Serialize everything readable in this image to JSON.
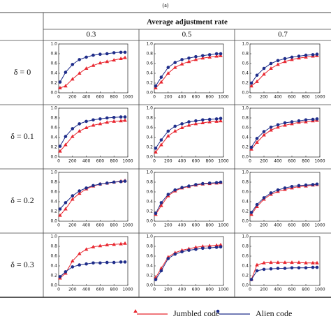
{
  "figure_label": "(a)",
  "column_header": "Average adjustment rate",
  "columns": [
    "0.3",
    "0.5",
    "0.7"
  ],
  "rows": [
    "δ = 0",
    "δ = 0.1",
    "δ = 0.2",
    "δ = 0.3"
  ],
  "chart_data": [
    {
      "type": "line",
      "x": [
        20,
        100,
        200,
        300,
        400,
        500,
        600,
        700,
        800,
        900,
        960
      ],
      "xlim": [
        0,
        1000
      ],
      "xticks": [
        0,
        200,
        400,
        600,
        800,
        1000
      ],
      "ylim": [
        0,
        1
      ],
      "yticks": [
        {
          "value": 0,
          "label": "0.0"
        },
        0.2,
        0.4,
        0.6,
        0.8,
        {
          "value": 1,
          "label": "1.0"
        }
      ],
      "series": [
        {
          "name": "Jumbled code",
          "color": "#e8262f",
          "marker": "triangle",
          "values": [
            0.1,
            0.14,
            0.28,
            0.4,
            0.5,
            0.56,
            0.61,
            0.64,
            0.67,
            0.7,
            0.72
          ]
        },
        {
          "name": "Alien code",
          "color": "#1f2d8a",
          "marker": "circle",
          "values": [
            0.22,
            0.42,
            0.58,
            0.68,
            0.73,
            0.77,
            0.79,
            0.8,
            0.82,
            0.83,
            0.83
          ]
        }
      ]
    },
    {
      "type": "line",
      "x": [
        20,
        100,
        200,
        300,
        400,
        500,
        600,
        700,
        800,
        900,
        960
      ],
      "xlim": [
        0,
        1000
      ],
      "xticks": [
        0,
        200,
        400,
        600,
        800,
        1000
      ],
      "ylim": [
        0,
        1
      ],
      "yticks": [
        {
          "value": 0,
          "label": "0.0"
        },
        0.2,
        0.4,
        0.6,
        0.8,
        {
          "value": 1,
          "label": "1.0"
        }
      ],
      "series": [
        {
          "name": "Jumbled code",
          "color": "#e8262f",
          "marker": "triangle",
          "values": [
            0.1,
            0.22,
            0.4,
            0.52,
            0.59,
            0.64,
            0.68,
            0.71,
            0.73,
            0.75,
            0.76
          ]
        },
        {
          "name": "Alien code",
          "color": "#1f2d8a",
          "marker": "circle",
          "values": [
            0.14,
            0.32,
            0.52,
            0.62,
            0.68,
            0.71,
            0.74,
            0.76,
            0.78,
            0.8,
            0.8
          ]
        }
      ]
    },
    {
      "type": "line",
      "x": [
        20,
        100,
        200,
        300,
        400,
        500,
        600,
        700,
        800,
        900,
        960
      ],
      "xlim": [
        0,
        1000
      ],
      "xticks": [
        0,
        200,
        400,
        600,
        800,
        1000
      ],
      "ylim": [
        0,
        1
      ],
      "yticks": [
        {
          "value": 0,
          "label": "0.0"
        },
        0.2,
        0.4,
        0.6,
        0.8,
        {
          "value": 1,
          "label": "1.0"
        }
      ],
      "series": [
        {
          "name": "Jumbled code",
          "color": "#e8262f",
          "marker": "triangle",
          "values": [
            0.14,
            0.23,
            0.38,
            0.5,
            0.58,
            0.64,
            0.68,
            0.71,
            0.73,
            0.75,
            0.76
          ]
        },
        {
          "name": "Alien code",
          "color": "#1f2d8a",
          "marker": "circle",
          "values": [
            0.2,
            0.36,
            0.5,
            0.6,
            0.66,
            0.7,
            0.73,
            0.75,
            0.77,
            0.78,
            0.79
          ]
        }
      ]
    },
    {
      "type": "line",
      "x": [
        20,
        100,
        200,
        300,
        400,
        500,
        600,
        700,
        800,
        900,
        960
      ],
      "xlim": [
        0,
        1000
      ],
      "xticks": [
        0,
        200,
        400,
        600,
        800,
        1000
      ],
      "ylim": [
        0,
        1
      ],
      "yticks": [
        {
          "value": 0,
          "label": "0.0"
        },
        0.2,
        0.4,
        0.6,
        0.8,
        {
          "value": 1,
          "label": "1.0"
        }
      ],
      "series": [
        {
          "name": "Jumbled code",
          "color": "#e8262f",
          "marker": "triangle",
          "values": [
            0.12,
            0.25,
            0.42,
            0.53,
            0.6,
            0.65,
            0.68,
            0.71,
            0.73,
            0.74,
            0.75
          ]
        },
        {
          "name": "Alien code",
          "color": "#1f2d8a",
          "marker": "circle",
          "values": [
            0.22,
            0.42,
            0.58,
            0.68,
            0.73,
            0.76,
            0.78,
            0.8,
            0.81,
            0.82,
            0.82
          ]
        }
      ]
    },
    {
      "type": "line",
      "x": [
        20,
        100,
        200,
        300,
        400,
        500,
        600,
        700,
        800,
        900,
        960
      ],
      "xlim": [
        0,
        1000
      ],
      "xticks": [
        0,
        200,
        400,
        600,
        800,
        1000
      ],
      "ylim": [
        0,
        1
      ],
      "yticks": [
        {
          "value": 0,
          "label": "0.0"
        },
        0.2,
        0.4,
        0.6,
        0.8,
        {
          "value": 1,
          "label": "1.0"
        }
      ],
      "series": [
        {
          "name": "Jumbled code",
          "color": "#e8262f",
          "marker": "triangle",
          "values": [
            0.1,
            0.25,
            0.43,
            0.53,
            0.6,
            0.65,
            0.68,
            0.7,
            0.72,
            0.73,
            0.74
          ]
        },
        {
          "name": "Alien code",
          "color": "#1f2d8a",
          "marker": "circle",
          "values": [
            0.18,
            0.35,
            0.53,
            0.63,
            0.68,
            0.72,
            0.74,
            0.76,
            0.77,
            0.78,
            0.79
          ]
        }
      ]
    },
    {
      "type": "line",
      "x": [
        20,
        100,
        200,
        300,
        400,
        500,
        600,
        700,
        800,
        900,
        960
      ],
      "xlim": [
        0,
        1000
      ],
      "xticks": [
        0,
        200,
        400,
        600,
        800,
        1000
      ],
      "ylim": [
        0,
        1
      ],
      "yticks": [
        {
          "value": 0,
          "label": "0.0"
        },
        0.2,
        0.4,
        0.6,
        0.8,
        {
          "value": 1,
          "label": "1.0"
        }
      ],
      "series": [
        {
          "name": "Jumbled code",
          "color": "#e8262f",
          "marker": "triangle",
          "values": [
            0.16,
            0.3,
            0.45,
            0.55,
            0.61,
            0.65,
            0.68,
            0.71,
            0.72,
            0.74,
            0.75
          ]
        },
        {
          "name": "Alien code",
          "color": "#1f2d8a",
          "marker": "circle",
          "values": [
            0.2,
            0.38,
            0.52,
            0.61,
            0.66,
            0.7,
            0.72,
            0.74,
            0.76,
            0.77,
            0.78
          ]
        }
      ]
    },
    {
      "type": "line",
      "x": [
        20,
        100,
        200,
        300,
        400,
        500,
        600,
        700,
        800,
        900,
        960
      ],
      "xlim": [
        0,
        1000
      ],
      "xticks": [
        0,
        200,
        400,
        600,
        800,
        1000
      ],
      "ylim": [
        0,
        1
      ],
      "yticks": [
        {
          "value": 0,
          "label": "0.0"
        },
        0.2,
        0.4,
        0.6,
        0.8,
        {
          "value": 1,
          "label": "1.0"
        }
      ],
      "series": [
        {
          "name": "Jumbled code",
          "color": "#e8262f",
          "marker": "triangle",
          "values": [
            0.12,
            0.25,
            0.45,
            0.57,
            0.66,
            0.72,
            0.76,
            0.78,
            0.8,
            0.82,
            0.83
          ]
        },
        {
          "name": "Alien code",
          "color": "#1f2d8a",
          "marker": "circle",
          "values": [
            0.25,
            0.38,
            0.52,
            0.62,
            0.68,
            0.73,
            0.76,
            0.78,
            0.8,
            0.81,
            0.82
          ]
        }
      ]
    },
    {
      "type": "line",
      "x": [
        20,
        100,
        200,
        300,
        400,
        500,
        600,
        700,
        800,
        900,
        960
      ],
      "xlim": [
        0,
        1000
      ],
      "xticks": [
        0,
        200,
        400,
        600,
        800,
        1000
      ],
      "ylim": [
        0,
        1
      ],
      "yticks": [
        {
          "value": 0,
          "label": "0.0"
        },
        0.2,
        0.4,
        0.6,
        0.8,
        {
          "value": 1,
          "label": "1.0"
        }
      ],
      "series": [
        {
          "name": "Jumbled code",
          "color": "#e8262f",
          "marker": "triangle",
          "values": [
            0.14,
            0.32,
            0.52,
            0.62,
            0.68,
            0.71,
            0.74,
            0.76,
            0.77,
            0.78,
            0.79
          ]
        },
        {
          "name": "Alien code",
          "color": "#1f2d8a",
          "marker": "circle",
          "values": [
            0.16,
            0.38,
            0.55,
            0.64,
            0.69,
            0.72,
            0.75,
            0.77,
            0.78,
            0.79,
            0.8
          ]
        }
      ]
    },
    {
      "type": "line",
      "x": [
        20,
        100,
        200,
        300,
        400,
        500,
        600,
        700,
        800,
        900,
        960
      ],
      "xlim": [
        0,
        1000
      ],
      "xticks": [
        0,
        200,
        400,
        600,
        800,
        1000
      ],
      "ylim": [
        0,
        1
      ],
      "yticks": [
        {
          "value": 0,
          "label": "0.0"
        },
        0.2,
        0.4,
        0.6,
        0.8,
        {
          "value": 1,
          "label": "1.0"
        }
      ],
      "series": [
        {
          "name": "Jumbled code",
          "color": "#e8262f",
          "marker": "triangle",
          "values": [
            0.14,
            0.3,
            0.45,
            0.55,
            0.61,
            0.65,
            0.68,
            0.71,
            0.72,
            0.74,
            0.75
          ]
        },
        {
          "name": "Alien code",
          "color": "#1f2d8a",
          "marker": "circle",
          "values": [
            0.18,
            0.34,
            0.48,
            0.58,
            0.64,
            0.68,
            0.71,
            0.73,
            0.74,
            0.75,
            0.76
          ]
        }
      ]
    },
    {
      "type": "line",
      "x": [
        20,
        100,
        200,
        300,
        400,
        500,
        600,
        700,
        800,
        900,
        960
      ],
      "xlim": [
        0,
        1000
      ],
      "xticks": [
        0,
        200,
        400,
        600,
        800,
        1000
      ],
      "ylim": [
        0,
        1
      ],
      "yticks": [
        {
          "value": 0,
          "label": "0.0"
        },
        0.2,
        0.4,
        0.6,
        0.8,
        {
          "value": 1,
          "label": "1.0"
        }
      ],
      "series": [
        {
          "name": "Jumbled code",
          "color": "#e8262f",
          "marker": "triangle",
          "values": [
            0.15,
            0.25,
            0.5,
            0.65,
            0.74,
            0.79,
            0.81,
            0.83,
            0.84,
            0.85,
            0.86
          ]
        },
        {
          "name": "Alien code",
          "color": "#1f2d8a",
          "marker": "circle",
          "values": [
            0.18,
            0.28,
            0.38,
            0.42,
            0.44,
            0.46,
            0.46,
            0.47,
            0.47,
            0.48,
            0.48
          ]
        }
      ]
    },
    {
      "type": "line",
      "x": [
        20,
        100,
        200,
        300,
        400,
        500,
        600,
        700,
        800,
        900,
        960
      ],
      "xlim": [
        0,
        1000
      ],
      "xticks": [
        0,
        200,
        400,
        600,
        800,
        1000
      ],
      "ylim": [
        0,
        1
      ],
      "yticks": [
        {
          "value": 0,
          "label": "0.0"
        },
        0.2,
        0.4,
        0.6,
        0.8,
        {
          "value": 1,
          "label": "1.0"
        }
      ],
      "series": [
        {
          "name": "Jumbled code",
          "color": "#e8262f",
          "marker": "triangle",
          "values": [
            0.16,
            0.35,
            0.58,
            0.67,
            0.72,
            0.75,
            0.78,
            0.8,
            0.81,
            0.82,
            0.83
          ]
        },
        {
          "name": "Alien code",
          "color": "#1f2d8a",
          "marker": "circle",
          "values": [
            0.12,
            0.3,
            0.55,
            0.64,
            0.69,
            0.72,
            0.74,
            0.76,
            0.77,
            0.78,
            0.79
          ]
        }
      ]
    },
    {
      "type": "line",
      "x": [
        20,
        100,
        200,
        300,
        400,
        500,
        600,
        700,
        800,
        900,
        960
      ],
      "xlim": [
        0,
        1000
      ],
      "xticks": [
        0,
        200,
        400,
        600,
        800,
        1000
      ],
      "ylim": [
        0,
        1
      ],
      "yticks": [
        {
          "value": 0,
          "label": "0.0"
        },
        0.2,
        0.4,
        0.6,
        0.8,
        {
          "value": 1,
          "label": "1.0"
        }
      ],
      "series": [
        {
          "name": "Jumbled code",
          "color": "#e8262f",
          "marker": "triangle",
          "values": [
            0.12,
            0.42,
            0.46,
            0.47,
            0.47,
            0.47,
            0.47,
            0.47,
            0.46,
            0.46,
            0.46
          ]
        },
        {
          "name": "Alien code",
          "color": "#1f2d8a",
          "marker": "circle",
          "values": [
            0.12,
            0.3,
            0.33,
            0.34,
            0.35,
            0.35,
            0.36,
            0.36,
            0.36,
            0.37,
            0.37
          ]
        }
      ]
    }
  ]
}
